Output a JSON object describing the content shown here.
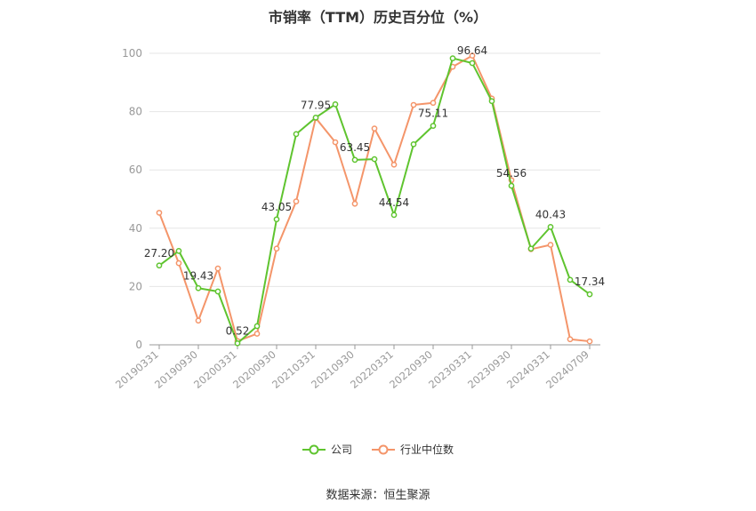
{
  "chart_data": {
    "type": "line",
    "title": "市销率（TTM）历史百分位（%）",
    "xlabel": "",
    "ylabel": "",
    "ylim": [
      0,
      100
    ],
    "yticks": [
      0,
      20,
      40,
      60,
      80,
      100
    ],
    "grid": true,
    "legend_position": "bottom",
    "x": [
      "20190331",
      "20190630",
      "20190930",
      "20191231",
      "20200331",
      "20200630",
      "20200930",
      "20201231",
      "20210331",
      "20210630",
      "20210930",
      "20211231",
      "20220331",
      "20220630",
      "20220930",
      "20221231",
      "20230331",
      "20230630",
      "20230930",
      "20231231",
      "20240331",
      "20240630",
      "20240709"
    ],
    "x_tick_labels": [
      "20190331",
      "20190930",
      "20200331",
      "20200930",
      "20210331",
      "20210930",
      "20220331",
      "20220930",
      "20230331",
      "20230930",
      "20240331",
      "20240709"
    ],
    "series": [
      {
        "name": "公司",
        "color": "#5fc42f",
        "values": [
          27.2,
          32.2,
          19.43,
          18.3,
          0.52,
          6.4,
          43.05,
          72.3,
          77.95,
          82.5,
          63.45,
          63.7,
          44.54,
          68.8,
          75.11,
          98.3,
          96.64,
          83.6,
          54.56,
          33.0,
          40.43,
          22.3,
          17.34
        ],
        "data_labels": {
          "0": "27.20",
          "2": "19.43",
          "4": "0.52",
          "6": "43.05",
          "8": "77.95",
          "10": "63.45",
          "12": "44.54",
          "14": "75.11",
          "16": "96.64",
          "18": "54.56",
          "20": "40.43",
          "22": "17.34"
        }
      },
      {
        "name": "行业中位数",
        "color": "#f4956a",
        "values": [
          45.3,
          28.0,
          8.3,
          26.2,
          1.3,
          3.8,
          33.0,
          49.2,
          77.8,
          69.5,
          48.4,
          74.2,
          61.8,
          82.3,
          83.0,
          95.4,
          99.2,
          84.5,
          56.5,
          32.8,
          34.3,
          1.9,
          1.2
        ]
      }
    ]
  },
  "source": "数据来源：恒生聚源"
}
